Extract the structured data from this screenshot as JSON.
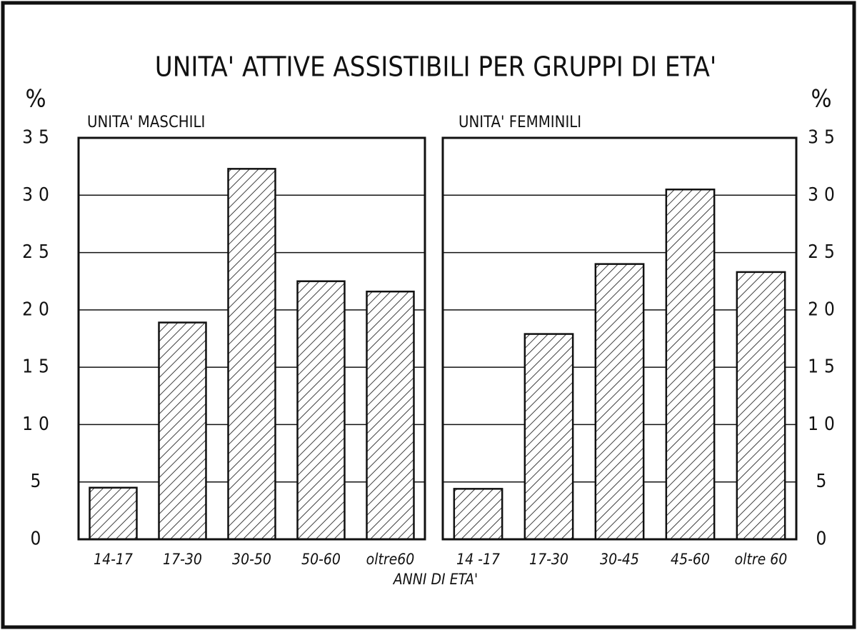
{
  "title": "UNITA' ATTIVE ASSISTIBILI PER GRUPPI DI ETA'",
  "xlabel": "ANNI DI ETA'",
  "chart_data": [
    {
      "type": "bar",
      "subtitle": "UNITA' MASCHILI",
      "ylabel": "%",
      "categories": [
        "14-17",
        "17-30",
        "30-50",
        "50-60",
        "oltre60"
      ],
      "values": [
        4.5,
        18.9,
        32.3,
        22.5,
        21.6
      ],
      "ylim": [
        0,
        35
      ],
      "yticks": [
        0,
        5,
        10,
        15,
        20,
        25,
        30,
        35
      ],
      "grid": true
    },
    {
      "type": "bar",
      "subtitle": "UNITA' FEMMINILI",
      "ylabel": "%",
      "categories": [
        "14 -17",
        "17-30",
        "30-45",
        "45-60",
        "oltre 60"
      ],
      "values": [
        4.4,
        17.9,
        24.0,
        30.5,
        23.3
      ],
      "ylim": [
        0,
        35
      ],
      "yticks": [
        0,
        5,
        10,
        15,
        20,
        25,
        30,
        35
      ],
      "grid": true
    }
  ]
}
